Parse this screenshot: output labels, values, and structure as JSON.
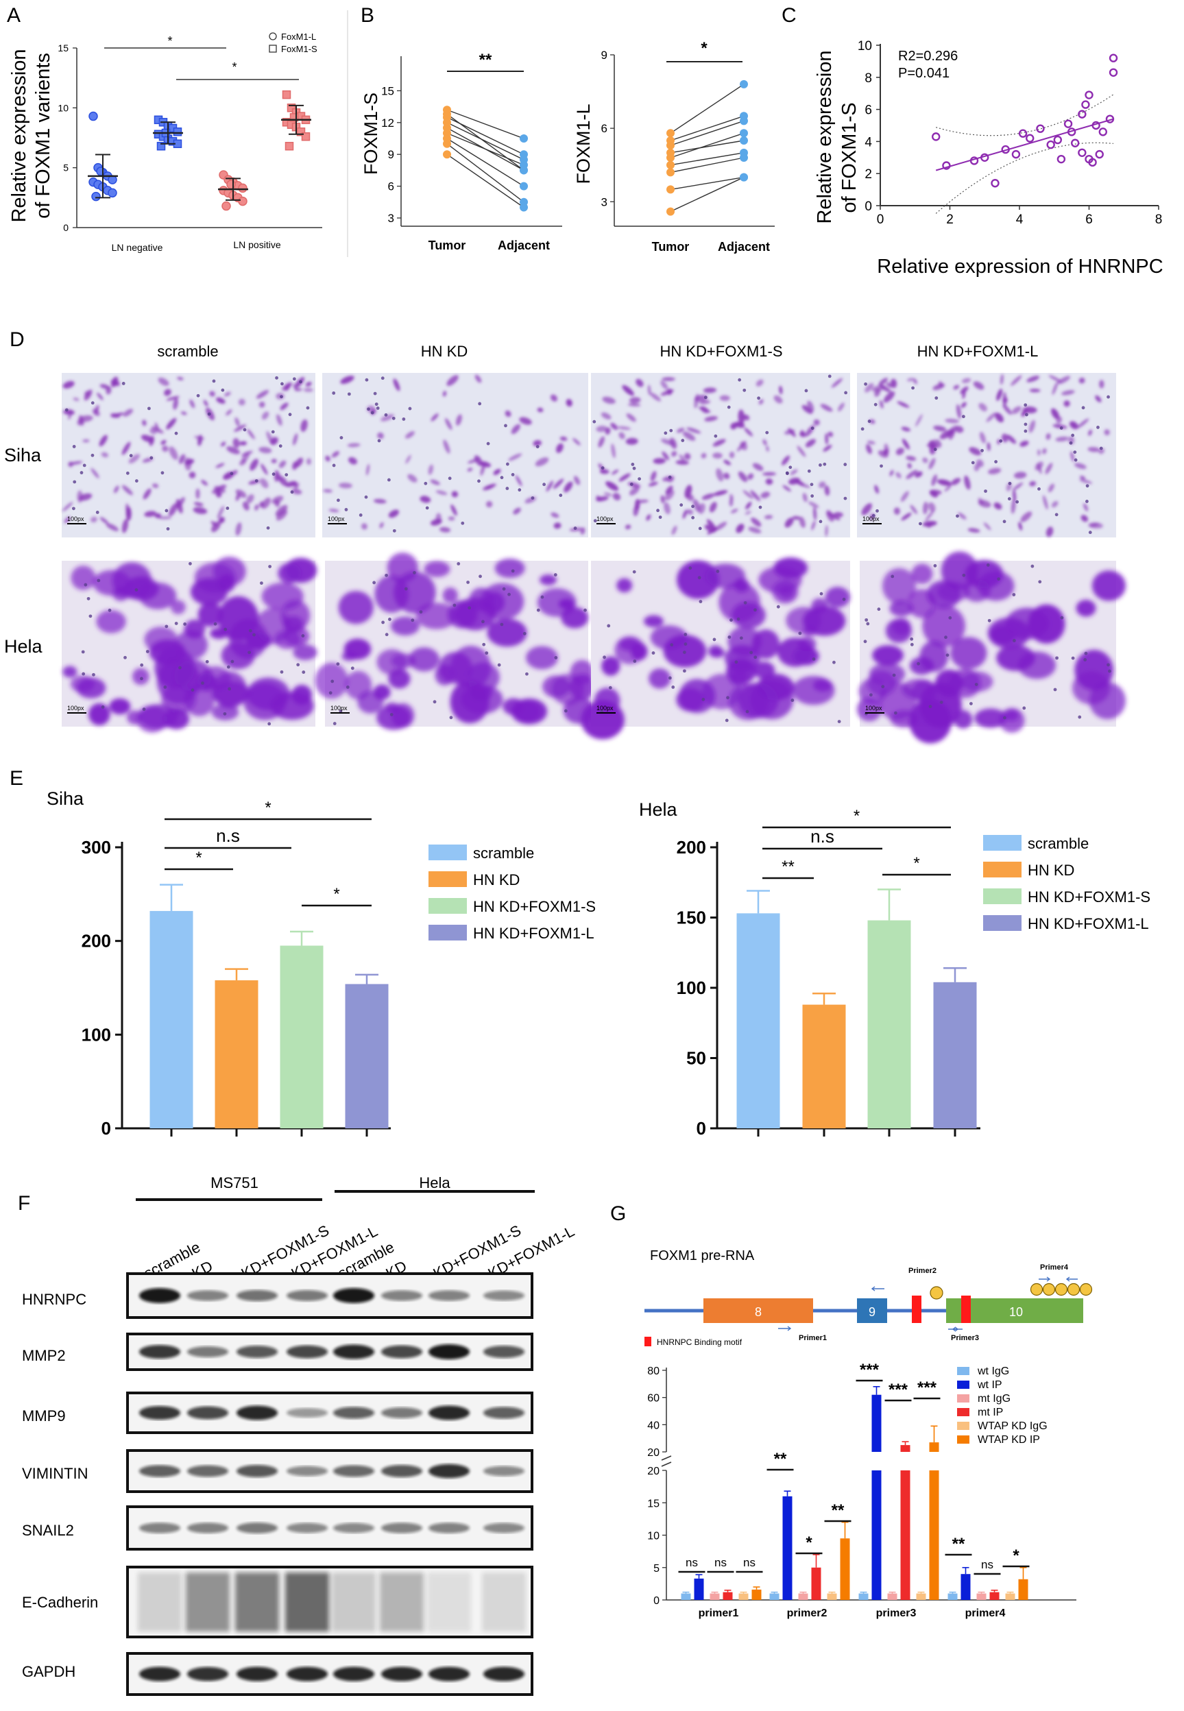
{
  "panels": {
    "A": "A",
    "B": "B",
    "C": "C",
    "D": "D",
    "E": "E",
    "F": "F",
    "G": "G"
  },
  "panel_A": {
    "ylabel_line1": "Relative expression",
    "ylabel_line2": "of FOXM1 varients",
    "legend": [
      "FoxM1-L",
      "FoxM1-S"
    ],
    "groups": [
      "LN negative",
      "LN positive"
    ],
    "sig": [
      "*",
      "*"
    ]
  },
  "panel_B": {
    "left_ylabel": "FOXM1-S",
    "right_ylabel": "FOXM1-L",
    "xcats": [
      "Tumor",
      "Adjacent"
    ],
    "left_sig": "**",
    "right_sig": "*"
  },
  "panel_C": {
    "ylabel_line1": "Relative expression",
    "ylabel_line2": "of FOXM1-S",
    "xlabel": "Relative expression of HNRNPC",
    "r2": "R2=0.296",
    "p": "P=0.041"
  },
  "panel_D": {
    "columns": [
      "scramble",
      "HN KD",
      "HN KD+FOXM1-S",
      "HN KD+FOXM1-L"
    ],
    "rows": [
      "Siha",
      "Hela"
    ],
    "scalebar": "100px"
  },
  "panel_E": {
    "titles": [
      "Siha",
      "Hela"
    ],
    "legend": [
      "scramble",
      "HN KD",
      "HN KD+FOXM1-S",
      "HN KD+FOXM1-L"
    ],
    "colors": [
      "#93c5f5",
      "#f8a144",
      "#b5e2b4",
      "#8f95d3"
    ],
    "siha_sig": [
      "*",
      "n.s",
      "*",
      "*"
    ],
    "hela_sig": [
      "*",
      "n.s",
      "**",
      "*"
    ]
  },
  "panel_F": {
    "cell_lines": [
      "MS751",
      "Hela"
    ],
    "lanes": [
      "scramble",
      "KD",
      "KD+FOXM1-S",
      "KD+FOXM1-L",
      "scramble",
      "KD",
      "KD+FOXM1-S",
      "KD+FOXM1-L"
    ],
    "proteins": [
      "HNRNPC",
      "MMP2",
      "MMP9",
      "VIMINTIN",
      "SNAIL2",
      "E-Cadherin",
      "GAPDH"
    ]
  },
  "panel_G": {
    "title": "FOXM1 pre-RNA",
    "exons": [
      "8",
      "9",
      "10"
    ],
    "primers": [
      "Primer1",
      "Primer2",
      "Primer3",
      "Primer4"
    ],
    "motif_label": "HNRNPC Binding motif",
    "legend": [
      "wt IgG",
      "wt IP",
      "mt IgG",
      "mt IP",
      "WTAP KD IgG",
      "WTAP KD IP"
    ],
    "xcats": [
      "primer1",
      "primer2",
      "primer3",
      "primer4"
    ],
    "sig_primer1": [
      "ns",
      "ns",
      "ns"
    ],
    "sig_primer2": [
      "**",
      "*",
      "**"
    ],
    "sig_primer3": [
      "***",
      "***",
      "***"
    ],
    "sig_primer4": [
      "**",
      "ns",
      "*"
    ]
  },
  "chart_data": [
    {
      "type": "scatter",
      "panel": "A",
      "ylim": [
        0,
        15
      ],
      "yticks": [
        0,
        5,
        10,
        15
      ],
      "series": [
        {
          "name": "FoxM1-L",
          "group": "LN negative",
          "values": [
            9.3,
            5.0,
            4.6,
            4.3,
            4.0,
            3.8,
            3.6,
            3.4,
            3.1,
            2.9,
            2.6,
            4.7
          ],
          "mean": 4.3,
          "sd": 1.8
        },
        {
          "name": "FoxM1-S",
          "group": "LN negative",
          "values": [
            9.0,
            8.8,
            8.5,
            8.3,
            8.0,
            7.8,
            7.6,
            7.4,
            7.2,
            7.0,
            6.8,
            7.9
          ],
          "mean": 7.9,
          "sd": 0.9
        },
        {
          "name": "FoxM1-L",
          "group": "LN positive",
          "values": [
            4.4,
            4.0,
            3.8,
            3.5,
            3.3,
            3.1,
            2.9,
            2.7,
            2.5,
            2.2,
            1.8,
            3.6
          ],
          "mean": 3.2,
          "sd": 0.9
        },
        {
          "name": "FoxM1-S",
          "group": "LN positive",
          "values": [
            11.1,
            10.0,
            9.6,
            9.3,
            9.0,
            8.8,
            8.6,
            8.4,
            8.0,
            7.6,
            6.8,
            9.2
          ],
          "mean": 9.0,
          "sd": 1.2
        }
      ]
    },
    {
      "type": "line",
      "panel": "B-left",
      "ylim": [
        3,
        18
      ],
      "yticks": [
        3,
        6,
        9,
        12,
        15
      ],
      "pairs": [
        [
          13.2,
          10.5
        ],
        [
          12.5,
          9.0
        ],
        [
          12.0,
          8.5
        ],
        [
          11.5,
          7.5
        ],
        [
          11.0,
          8.0
        ],
        [
          10.5,
          6.0
        ],
        [
          10.0,
          4.5
        ],
        [
          9.0,
          4.0
        ],
        [
          12.8,
          7.5
        ]
      ]
    },
    {
      "type": "line",
      "panel": "B-right",
      "ylim": [
        2,
        9
      ],
      "yticks": [
        3,
        6,
        9
      ],
      "pairs": [
        [
          5.8,
          7.8
        ],
        [
          5.5,
          6.5
        ],
        [
          5.3,
          6.3
        ],
        [
          5.0,
          5.5
        ],
        [
          4.8,
          5.8
        ],
        [
          4.5,
          5.0
        ],
        [
          4.2,
          4.8
        ],
        [
          3.5,
          4.0
        ],
        [
          2.6,
          4.0
        ]
      ]
    },
    {
      "type": "scatter",
      "panel": "C",
      "xlim": [
        0,
        8
      ],
      "ylim": [
        0,
        10
      ],
      "xticks": [
        0,
        2,
        4,
        6,
        8
      ],
      "yticks": [
        0,
        2,
        4,
        6,
        8,
        10
      ],
      "points": [
        [
          6.7,
          9.2
        ],
        [
          6.7,
          8.3
        ],
        [
          1.6,
          4.3
        ],
        [
          1.9,
          2.5
        ],
        [
          2.7,
          2.8
        ],
        [
          3.0,
          3.0
        ],
        [
          3.3,
          1.4
        ],
        [
          3.6,
          3.5
        ],
        [
          3.9,
          3.2
        ],
        [
          4.1,
          4.5
        ],
        [
          4.3,
          4.2
        ],
        [
          4.6,
          4.8
        ],
        [
          4.9,
          3.8
        ],
        [
          5.1,
          4.1
        ],
        [
          5.4,
          5.1
        ],
        [
          5.5,
          4.6
        ],
        [
          5.6,
          3.9
        ],
        [
          5.8,
          5.7
        ],
        [
          5.9,
          6.3
        ],
        [
          6.0,
          6.9
        ],
        [
          6.2,
          5.0
        ],
        [
          6.4,
          4.6
        ],
        [
          5.2,
          2.9
        ],
        [
          5.8,
          3.3
        ],
        [
          6.0,
          2.9
        ],
        [
          6.1,
          2.7
        ],
        [
          6.3,
          3.2
        ],
        [
          6.6,
          5.4
        ]
      ],
      "fit": [
        [
          1.6,
          2.2
        ],
        [
          6.7,
          5.4
        ]
      ]
    },
    {
      "type": "bar",
      "panel": "E-Siha",
      "categories": [
        "scramble",
        "HN KD",
        "HN KD+FOXM1-S",
        "HN KD+FOXM1-L"
      ],
      "values": [
        232,
        158,
        195,
        154
      ],
      "errors": [
        28,
        12,
        15,
        10
      ],
      "ylim": [
        0,
        300
      ],
      "yticks": [
        0,
        100,
        200,
        300
      ]
    },
    {
      "type": "bar",
      "panel": "E-Hela",
      "categories": [
        "scramble",
        "HN KD",
        "HN KD+FOXM1-S",
        "HN KD+FOXM1-L"
      ],
      "values": [
        153,
        88,
        148,
        104
      ],
      "errors": [
        16,
        8,
        22,
        10
      ],
      "ylim": [
        0,
        200
      ],
      "yticks": [
        0,
        50,
        100,
        150,
        200
      ]
    },
    {
      "type": "bar",
      "panel": "G",
      "categories": [
        "primer1",
        "primer2",
        "primer3",
        "primer4"
      ],
      "series": [
        {
          "name": "wt IgG",
          "values": [
            1.0,
            1.0,
            1.0,
            1.0
          ],
          "errors": [
            0.2,
            0.2,
            0.2,
            0.2
          ]
        },
        {
          "name": "wt IP",
          "values": [
            3.3,
            16.0,
            62.0,
            4.0
          ],
          "errors": [
            0.6,
            0.8,
            6,
            1.0
          ]
        },
        {
          "name": "mt IgG",
          "values": [
            1.0,
            1.0,
            1.0,
            1.0
          ],
          "errors": [
            0.2,
            0.2,
            0.2,
            0.2
          ]
        },
        {
          "name": "mt IP",
          "values": [
            1.2,
            5.0,
            25.0,
            1.2
          ],
          "errors": [
            0.3,
            2.0,
            2.5,
            0.3
          ]
        },
        {
          "name": "WTAP KD IgG",
          "values": [
            1.0,
            1.0,
            1.0,
            1.0
          ],
          "errors": [
            0.2,
            0.2,
            0.2,
            0.2
          ]
        },
        {
          "name": "WTAP KD IP",
          "values": [
            1.6,
            9.5,
            27.0,
            3.2
          ],
          "errors": [
            0.4,
            2.5,
            12,
            1.8
          ]
        }
      ],
      "ylim_lower": [
        0,
        20
      ],
      "ylim_upper": [
        20,
        80
      ],
      "yticks_lower": [
        0,
        5,
        10,
        15,
        20
      ],
      "yticks_upper": [
        20,
        40,
        60,
        80
      ]
    }
  ]
}
